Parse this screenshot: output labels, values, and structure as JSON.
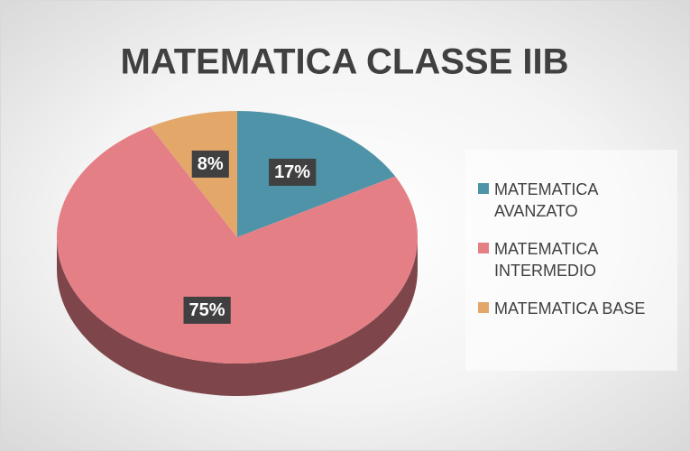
{
  "chart_data": {
    "type": "pie",
    "title": "MATEMATICA CLASSE IIB",
    "categories": [
      "MATEMATICA AVANZATO",
      "MATEMATICA INTERMEDIO",
      "MATEMATICA BASE"
    ],
    "values": [
      17,
      75,
      8
    ],
    "value_labels": [
      "17%",
      "75%",
      "8%"
    ],
    "colors": [
      "#4f93a8",
      "#e57f86",
      "#e3a76a"
    ],
    "legend": "right"
  }
}
